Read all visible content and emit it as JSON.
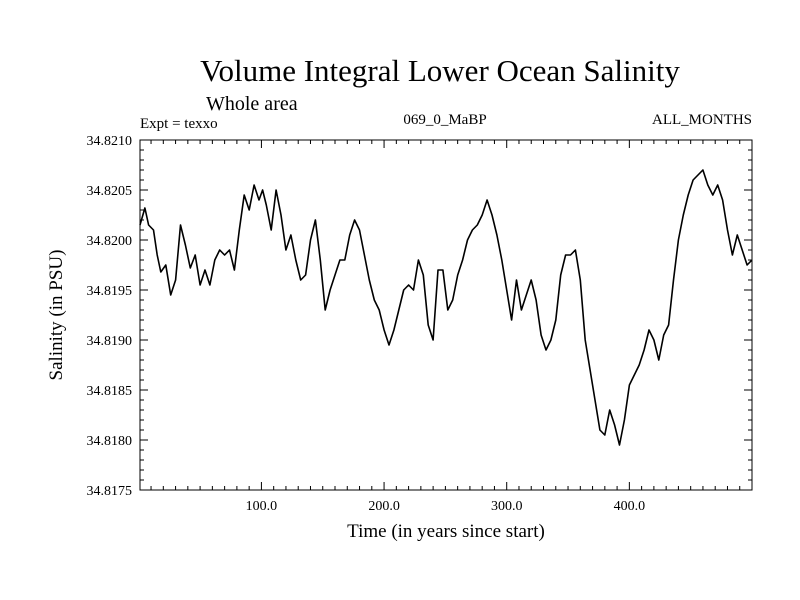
{
  "chart_data": {
    "type": "line",
    "title": "Volume Integral Lower Ocean Salinity",
    "subtitle": "Whole area",
    "experiment": "Expt = texxo",
    "run_id": "069_0_MaBP",
    "months": "ALL_MONTHS",
    "xlabel": "Time (in years since start)",
    "ylabel": "Salinity (in PSU)",
    "xlim": [
      1,
      500
    ],
    "ylim": [
      34.8175,
      34.821
    ],
    "xticks": [
      100,
      200,
      300,
      400
    ],
    "xtick_labels": [
      "100.0",
      "200.0",
      "300.0",
      "400.0"
    ],
    "yticks": [
      34.8175,
      34.818,
      34.8185,
      34.819,
      34.8195,
      34.82,
      34.8205,
      34.821
    ],
    "ytick_labels": [
      "34.8175",
      "34.8180",
      "34.8185",
      "34.8190",
      "34.8195",
      "34.8200",
      "34.8205",
      "34.8210"
    ],
    "series": [
      {
        "name": "salinity",
        "color": "#000000",
        "x": [
          1,
          5,
          8,
          12,
          15,
          18,
          22,
          26,
          30,
          34,
          38,
          42,
          46,
          50,
          54,
          58,
          62,
          66,
          70,
          74,
          78,
          82,
          86,
          90,
          94,
          98,
          101,
          104,
          108,
          112,
          116,
          120,
          124,
          128,
          132,
          136,
          140,
          144,
          148,
          152,
          156,
          160,
          164,
          168,
          172,
          176,
          180,
          184,
          188,
          192,
          196,
          200,
          204,
          208,
          212,
          216,
          220,
          224,
          228,
          232,
          236,
          240,
          244,
          248,
          252,
          256,
          260,
          264,
          268,
          272,
          276,
          280,
          284,
          288,
          292,
          296,
          300,
          304,
          308,
          312,
          316,
          320,
          324,
          328,
          332,
          336,
          340,
          344,
          348,
          352,
          356,
          360,
          364,
          368,
          372,
          376,
          380,
          384,
          388,
          392,
          396,
          400,
          404,
          408,
          412,
          416,
          420,
          424,
          428,
          432,
          436,
          440,
          444,
          448,
          452,
          456,
          460,
          464,
          468,
          472,
          476,
          480,
          484,
          488,
          492,
          496,
          500
        ],
        "values": [
          34.82015,
          34.82032,
          34.82015,
          34.8201,
          34.81985,
          34.81968,
          34.81975,
          34.81945,
          34.8196,
          34.82015,
          34.81995,
          34.81972,
          34.81985,
          34.81955,
          34.8197,
          34.81955,
          34.8198,
          34.8199,
          34.81985,
          34.8199,
          34.8197,
          34.8201,
          34.82045,
          34.8203,
          34.82055,
          34.8204,
          34.8205,
          34.82035,
          34.8201,
          34.8205,
          34.82025,
          34.8199,
          34.82005,
          34.8198,
          34.8196,
          34.81965,
          34.82,
          34.8202,
          34.8198,
          34.8193,
          34.8195,
          34.81965,
          34.8198,
          34.8198,
          34.82005,
          34.8202,
          34.8201,
          34.81985,
          34.8196,
          34.8194,
          34.8193,
          34.8191,
          34.81895,
          34.8191,
          34.8193,
          34.8195,
          34.81955,
          34.8195,
          34.8198,
          34.81965,
          34.81915,
          34.819,
          34.8197,
          34.8197,
          34.8193,
          34.8194,
          34.81965,
          34.8198,
          34.82,
          34.8201,
          34.82015,
          34.82025,
          34.8204,
          34.82025,
          34.82005,
          34.8198,
          34.8195,
          34.8192,
          34.8196,
          34.8193,
          34.81945,
          34.8196,
          34.8194,
          34.81905,
          34.8189,
          34.819,
          34.8192,
          34.81965,
          34.81985,
          34.81985,
          34.8199,
          34.8196,
          34.819,
          34.8187,
          34.8184,
          34.8181,
          34.81805,
          34.8183,
          34.81815,
          34.81795,
          34.8182,
          34.81855,
          34.81865,
          34.81875,
          34.8189,
          34.8191,
          34.819,
          34.8188,
          34.81905,
          34.81915,
          34.8196,
          34.82,
          34.82025,
          34.82045,
          34.8206,
          34.82065,
          34.8207,
          34.82055,
          34.82045,
          34.82055,
          34.8204,
          34.8201,
          34.81985,
          34.82005,
          34.8199,
          34.81975,
          34.8198
        ]
      }
    ]
  }
}
